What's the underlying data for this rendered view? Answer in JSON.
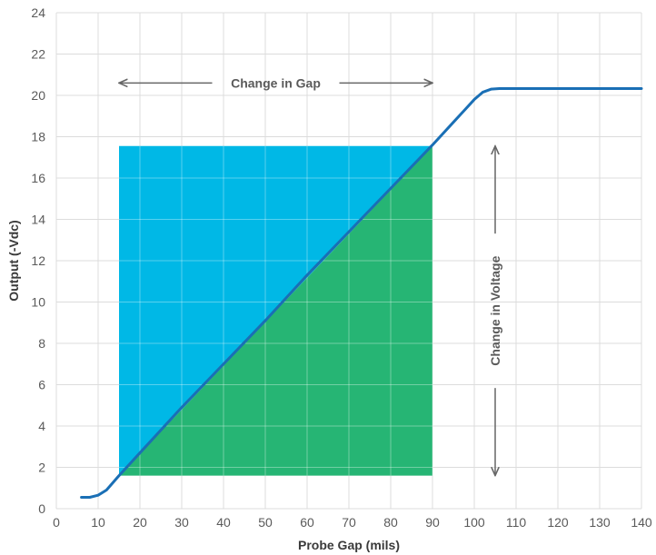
{
  "chart_data": {
    "type": "line",
    "title": "",
    "xlabel": "Probe Gap (mils)",
    "ylabel": "Output (-Vdc)",
    "xlim": [
      0,
      140
    ],
    "ylim": [
      0,
      24
    ],
    "xticks": [
      0,
      10,
      20,
      30,
      40,
      50,
      60,
      70,
      80,
      90,
      100,
      110,
      120,
      130,
      140
    ],
    "yticks": [
      0,
      2,
      4,
      6,
      8,
      10,
      12,
      14,
      16,
      18,
      20,
      22,
      24
    ],
    "grid": true,
    "legend": "none",
    "series": [
      {
        "x": [
          6,
          8,
          10,
          12,
          15,
          20,
          30,
          40,
          50,
          60,
          70,
          80,
          90,
          95,
          100,
          102,
          104,
          106,
          110,
          120,
          130,
          140
        ],
        "y": [
          0.55,
          0.55,
          0.65,
          0.9,
          1.6,
          2.7,
          4.9,
          7.0,
          9.1,
          11.3,
          13.4,
          15.5,
          17.6,
          18.7,
          19.8,
          20.15,
          20.3,
          20.33,
          20.33,
          20.33,
          20.33,
          20.33
        ]
      }
    ],
    "regions": [
      {
        "fill": "#00b8e6",
        "description": "upper triangle",
        "points": [
          [
            15,
            1.6
          ],
          [
            15,
            17.55
          ],
          [
            90,
            17.55
          ]
        ]
      },
      {
        "fill": "#26b574",
        "description": "lower triangle",
        "points": [
          [
            15,
            1.6
          ],
          [
            90,
            17.55
          ],
          [
            90,
            1.6
          ]
        ]
      }
    ],
    "annotations": {
      "change_in_gap": {
        "text": "Change in Gap",
        "x_range": [
          15,
          90
        ],
        "y": 20.6
      },
      "change_in_voltage": {
        "text": "Change in Voltage",
        "x": 105,
        "y_range": [
          1.6,
          17.55
        ]
      }
    }
  },
  "colors": {
    "line": "#1a6fb5",
    "grid": "#dcdcdc",
    "arrow": "#666666"
  }
}
